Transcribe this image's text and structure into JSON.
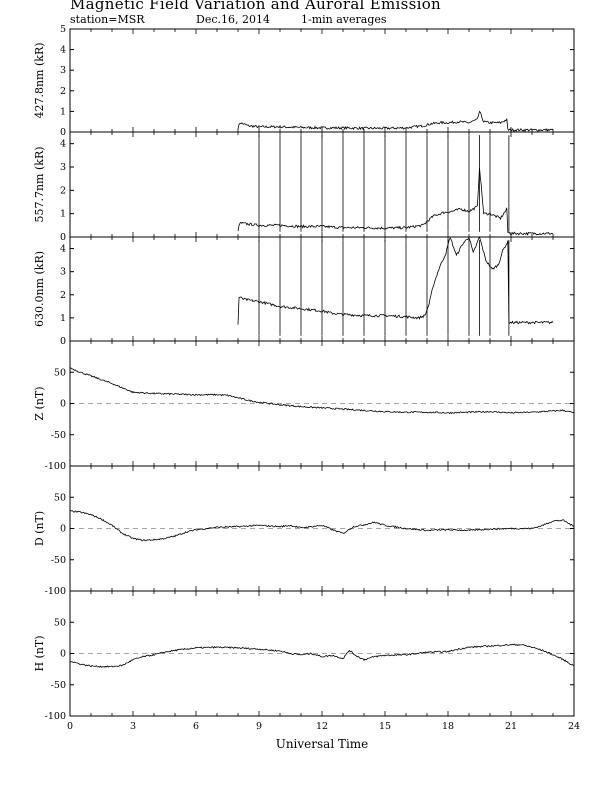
{
  "header": {
    "title": "Magnetic Field Variation and Auroral Emission",
    "station": "station=MSR",
    "date": "Dec.16, 2014",
    "averaging": "1-min averages"
  },
  "colors": {
    "trace": "#000000",
    "zero_line": "#888888",
    "background": "#ffffff"
  },
  "chart_data": [
    {
      "type": "line",
      "ylabel": "427.8nm (kR)",
      "ylim": [
        0,
        5
      ],
      "yticks": [
        "0",
        "1",
        "2",
        "3",
        "4",
        "5"
      ],
      "xlim": [
        0,
        24
      ],
      "zero_line": false,
      "x": [
        8.0,
        8.1,
        8.5,
        9,
        10,
        11,
        12,
        13,
        14,
        15,
        16,
        16.8,
        17.2,
        17.6,
        18,
        18.5,
        19,
        19.4,
        19.5,
        19.7,
        20,
        20.5,
        20.8,
        20.85,
        21,
        22,
        23
      ],
      "values": [
        0.2,
        0.45,
        0.3,
        0.25,
        0.25,
        0.22,
        0.2,
        0.2,
        0.18,
        0.18,
        0.2,
        0.3,
        0.4,
        0.45,
        0.45,
        0.5,
        0.45,
        0.6,
        1.0,
        0.5,
        0.45,
        0.45,
        0.6,
        0.1,
        0.1,
        0.1,
        0.1
      ],
      "spikes": []
    },
    {
      "type": "line",
      "ylabel": "557.7nm (kR)",
      "ylim": [
        0,
        4.5
      ],
      "yticks": [
        "0",
        "1",
        "2",
        "3",
        "4"
      ],
      "xlim": [
        0,
        24
      ],
      "zero_line": false,
      "x": [
        8.0,
        8.1,
        8.5,
        9,
        10,
        11,
        12,
        13,
        14,
        15,
        16,
        16.8,
        17.3,
        17.8,
        18.2,
        18.6,
        19,
        19.4,
        19.5,
        19.7,
        20,
        20.5,
        20.8,
        20.85,
        21,
        22,
        23
      ],
      "values": [
        0.3,
        0.6,
        0.55,
        0.5,
        0.5,
        0.45,
        0.45,
        0.4,
        0.4,
        0.38,
        0.4,
        0.5,
        0.9,
        1.05,
        1.1,
        1.2,
        1.1,
        1.3,
        3.0,
        1.0,
        1.0,
        0.8,
        1.2,
        0.2,
        0.15,
        0.15,
        0.15
      ],
      "spikes": [
        9,
        10,
        11,
        12,
        13,
        14,
        15,
        16,
        17,
        18,
        19,
        19.5,
        20,
        20.9
      ]
    },
    {
      "type": "line",
      "ylabel": "630.0nm (kR)",
      "ylim": [
        0,
        4.5
      ],
      "yticks": [
        "0",
        "1",
        "2",
        "3",
        "4"
      ],
      "xlim": [
        0,
        24
      ],
      "zero_line": false,
      "x": [
        8.0,
        8.05,
        8.3,
        9,
        10,
        11,
        12,
        12.5,
        13,
        14,
        15,
        16,
        16.6,
        16.9,
        17.1,
        17.3,
        17.6,
        17.9,
        18.1,
        18.4,
        18.7,
        19,
        19.2,
        19.5,
        19.8,
        20.1,
        20.4,
        20.6,
        20.85,
        20.9,
        22,
        23
      ],
      "values": [
        0.7,
        1.9,
        1.8,
        1.7,
        1.5,
        1.4,
        1.3,
        1.2,
        1.15,
        1.1,
        1.1,
        1.05,
        1.0,
        1.1,
        1.6,
        2.4,
        3.2,
        3.8,
        4.5,
        3.7,
        4.2,
        4.5,
        3.8,
        4.5,
        3.5,
        3.1,
        3.3,
        3.9,
        4.3,
        0.8,
        0.8,
        0.8
      ],
      "spikes": [
        9,
        10,
        11,
        12,
        13,
        14,
        15,
        16,
        17,
        18,
        19,
        19.5,
        20,
        20.9
      ]
    },
    {
      "type": "line",
      "ylabel": "Z (nT)",
      "ylim": [
        -100,
        100
      ],
      "yticks": [
        "-100",
        "-50",
        "0",
        "50"
      ],
      "xlim": [
        0,
        24
      ],
      "zero_line": true,
      "x": [
        0,
        0.5,
        1,
        1.5,
        2,
        2.5,
        3,
        3.5,
        4,
        5,
        6,
        7,
        7.5,
        8,
        8.5,
        9,
        10,
        11,
        12,
        12.5,
        13,
        14,
        15,
        16,
        17,
        18,
        19,
        20,
        21,
        22,
        23,
        23.5,
        24
      ],
      "values": [
        57,
        50,
        44,
        38,
        32,
        25,
        18,
        17,
        16,
        15,
        14,
        14,
        13,
        9,
        5,
        2,
        -2,
        -5,
        -7,
        -8,
        -9,
        -11,
        -13,
        -14,
        -14,
        -15,
        -14,
        -13,
        -15,
        -14,
        -12,
        -11,
        -15
      ],
      "spikes": []
    },
    {
      "type": "line",
      "ylabel": "D (nT)",
      "ylim": [
        -100,
        100
      ],
      "yticks": [
        "-100",
        "-50",
        "0",
        "50"
      ],
      "xlim": [
        0,
        24
      ],
      "zero_line": true,
      "x": [
        0,
        0.5,
        1,
        1.5,
        2,
        2.5,
        3,
        3.5,
        4,
        4.5,
        5,
        5.5,
        6,
        6.5,
        7,
        8,
        9,
        10,
        10.5,
        11,
        12,
        12.5,
        13,
        13.5,
        14,
        14.5,
        15,
        16,
        17,
        18,
        19,
        20,
        21,
        22,
        22.5,
        23,
        23.5,
        24
      ],
      "values": [
        28,
        26,
        22,
        15,
        5,
        -8,
        -16,
        -19,
        -18,
        -16,
        -12,
        -6,
        -2,
        0,
        2,
        3,
        5,
        3,
        5,
        1,
        5,
        -2,
        -8,
        3,
        6,
        10,
        5,
        0,
        -3,
        -2,
        -3,
        -1,
        0,
        0,
        5,
        12,
        13,
        3
      ],
      "spikes": []
    },
    {
      "type": "line",
      "ylabel": "H (nT)",
      "ylim": [
        -100,
        100
      ],
      "yticks": [
        "-100",
        "-50",
        "0",
        "50"
      ],
      "xlim": [
        0,
        24
      ],
      "zero_line": true,
      "x": [
        0,
        0.5,
        1,
        1.5,
        2,
        2.5,
        3,
        3.5,
        4,
        4.5,
        5,
        5.5,
        6,
        7,
        8,
        9,
        10,
        10.5,
        11,
        11.5,
        12,
        12.5,
        13,
        13.3,
        13.6,
        14,
        14.5,
        15,
        16,
        17,
        18,
        18.5,
        19,
        20,
        21,
        21.5,
        22,
        22.5,
        23,
        23.5,
        24
      ],
      "values": [
        -12,
        -17,
        -20,
        -21,
        -21,
        -19,
        -10,
        -5,
        -2,
        2,
        5,
        7,
        9,
        10,
        9,
        7,
        4,
        0,
        -2,
        0,
        -5,
        -3,
        -8,
        5,
        -3,
        -10,
        -5,
        -3,
        -2,
        2,
        3,
        7,
        10,
        12,
        14,
        14,
        10,
        5,
        -2,
        -10,
        -20
      ],
      "spikes": []
    }
  ],
  "x_axis": {
    "label": "Universal Time",
    "ticks": [
      "0",
      "3",
      "6",
      "9",
      "12",
      "15",
      "18",
      "21",
      "24"
    ]
  }
}
